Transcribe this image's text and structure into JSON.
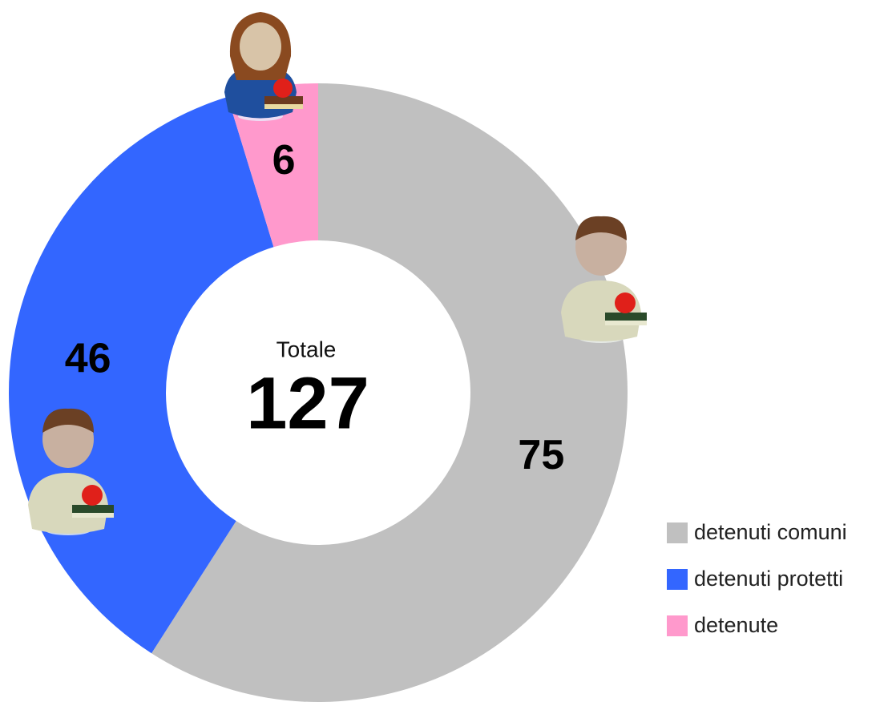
{
  "chart_data": {
    "type": "donut",
    "categories": [
      "detenuti comuni",
      "detenuti protetti",
      "detenute"
    ],
    "values": [
      75,
      46,
      6
    ],
    "colors": [
      "#c0c0c0",
      "#3366ff",
      "#ff99cc"
    ],
    "center_label": "Totale",
    "total": 127,
    "legend": "right"
  }
}
